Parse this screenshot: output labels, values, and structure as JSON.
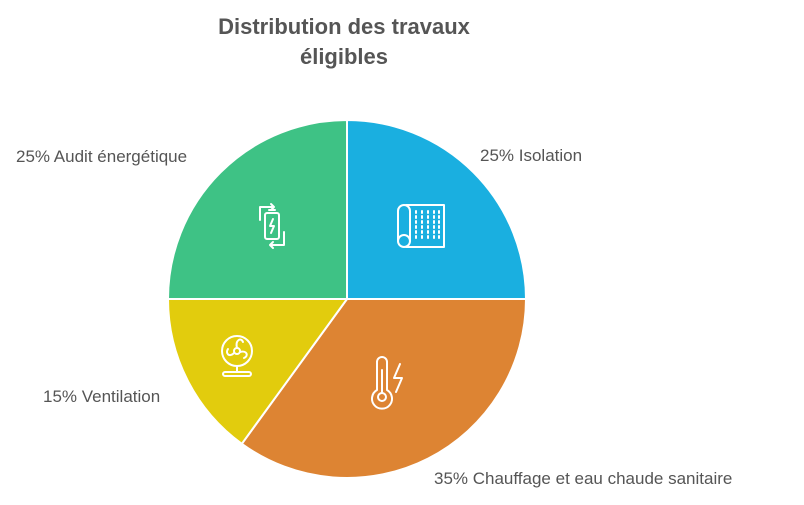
{
  "chart_data": {
    "type": "pie",
    "title_lines": [
      "Distribution des travaux",
      "éligibles"
    ],
    "slices": [
      {
        "label": "25% Isolation",
        "value": 25,
        "color": "#1AAFE0",
        "icon": "insulation-roll-icon"
      },
      {
        "label": "35% Chauffage et eau chaude sanitaire",
        "value": 35,
        "color": "#DD8433",
        "icon": "thermometer-bolt-icon"
      },
      {
        "label": "15% Ventilation",
        "value": 15,
        "color": "#E2CC0D",
        "icon": "fan-icon"
      },
      {
        "label": "25% Audit énergétique",
        "value": 25,
        "color": "#3EC285",
        "icon": "battery-cycle-icon"
      }
    ],
    "start_angle": "12 o'clock",
    "direction": "clockwise",
    "legend": "none"
  }
}
